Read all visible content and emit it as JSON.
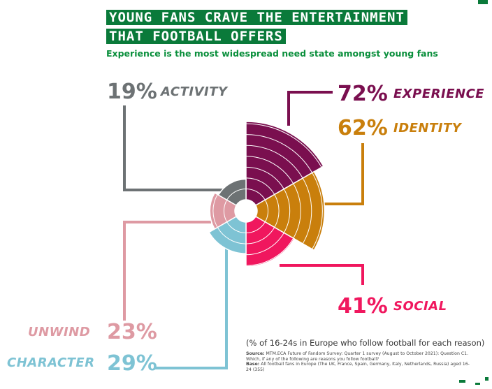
{
  "title": {
    "line1": "YOUNG FANS CRAVE THE ENTERTAINMENT",
    "line2": "THAT FOOTBALL OFFERS"
  },
  "subtitle": "Experience is the most widespread need state amongst young fans",
  "note": "(% of 16-24s in Europe who follow football for each reason)",
  "source": {
    "source_label": "Source:",
    "source_text": "MTM.ECA Future of Fandom Survey: Quarter 1 survey (August to October 2021): Question C1. Which, if any of the following are reasons you follow football?",
    "base_label": "Base:",
    "base_text": "All football fans in Europe (The UK, France, Spain, Germany, Italy, Netherlands, Russia) aged 16-24 (355)"
  },
  "colors": {
    "experience": "#7a0f4f",
    "identity": "#c97f0c",
    "social": "#f0175e",
    "character": "#7ec3d4",
    "unwind": "#de9aa3",
    "activity": "#6d7274",
    "brand_green": "#0a7a3a"
  },
  "chart_data": {
    "type": "polar-area",
    "unit": "%",
    "rings_scale": 10,
    "categories": [
      {
        "key": "experience",
        "name": "EXPERIENCE",
        "value": 72,
        "label": "72%"
      },
      {
        "key": "identity",
        "name": "IDENTITY",
        "value": 62,
        "label": "62%"
      },
      {
        "key": "social",
        "name": "SOCIAL",
        "value": 41,
        "label": "41%"
      },
      {
        "key": "character",
        "name": "CHARACTER",
        "value": 29,
        "label": "29%"
      },
      {
        "key": "unwind",
        "name": "UNWIND",
        "value": 23,
        "label": "23%"
      },
      {
        "key": "activity",
        "name": "ACTIVITY",
        "value": 19,
        "label": "19%"
      }
    ]
  }
}
